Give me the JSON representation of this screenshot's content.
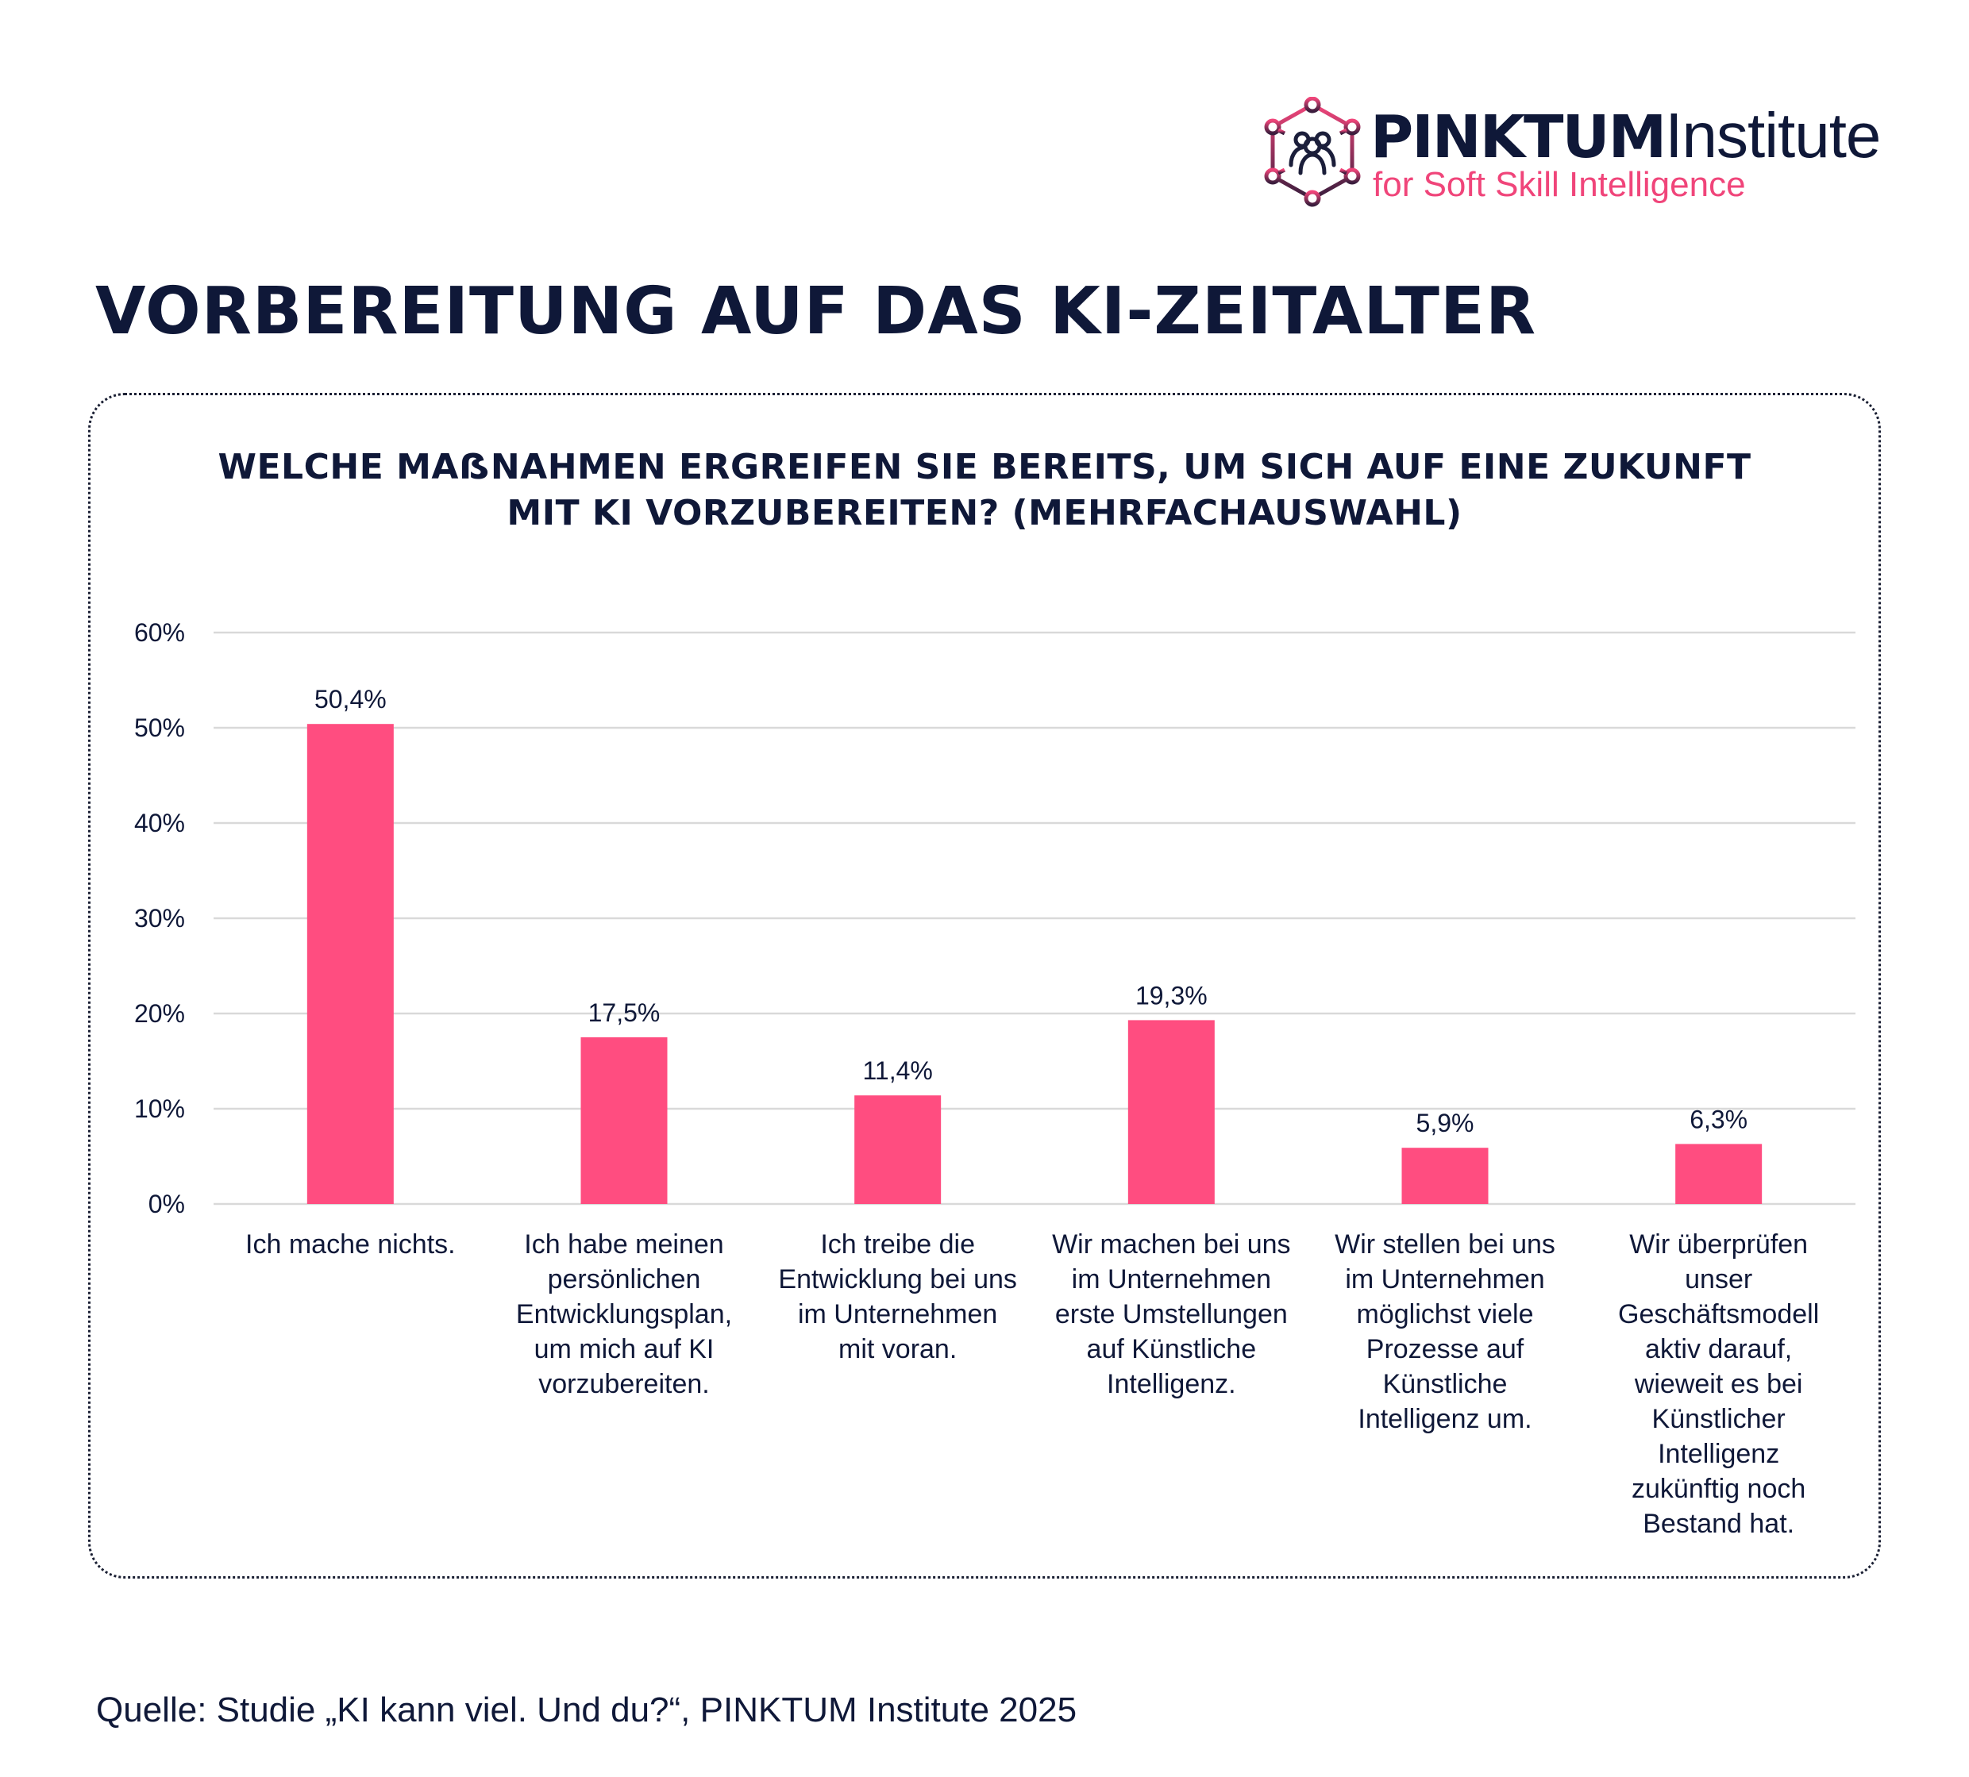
{
  "brand": {
    "name_bold": "PINKTUM",
    "name_light": "Institute",
    "tagline": "for Soft Skill Intelligence",
    "logo_icon": "network-people-hexagon-icon",
    "colors": {
      "dark": "#0f1838",
      "pink": "#f0457a",
      "plum": "#6b2a55"
    }
  },
  "page": {
    "title": "VORBEREITUNG AUF DAS KI-ZEITALTER",
    "source": "Quelle: Studie „KI kann viel. Und du?“, PINKTUM Institute 2025"
  },
  "card": {
    "question_line1": "WELCHE MAẞNAHMEN ERGREIFEN SIE BEREITS, UM SICH AUF EINE ZUKUNFT",
    "question_line2": "MIT KI VORZUBEREITEN? (MEHRFACHAUSWAHL)"
  },
  "chart_data": {
    "type": "bar",
    "title": "WELCHE MAẞNAHMEN ERGREIFEN SIE BEREITS, UM SICH AUF EINE ZUKUNFT MIT KI VORZUBEREITEN? (MEHRFACHAUSWAHL)",
    "xlabel": "",
    "ylabel": "",
    "ylim": [
      0,
      60
    ],
    "yticks": [
      0,
      10,
      20,
      30,
      40,
      50,
      60
    ],
    "ytick_labels": [
      "0%",
      "10%",
      "20%",
      "30%",
      "40%",
      "50%",
      "60%"
    ],
    "grid": true,
    "legend": "none",
    "bar_color": "#ff4d80",
    "categories": [
      "Ich mache nichts.",
      "Ich habe meinen persönlichen Entwicklungsplan, um mich auf KI vorzubereiten.",
      "Ich treibe die Entwicklung bei uns im Unternehmen mit voran.",
      "Wir machen bei uns im Unternehmen erste Umstellungen auf Künstliche Intelligenz.",
      "Wir stellen bei uns im Unternehmen möglichst viele Prozesse auf Künstliche Intelligenz um.",
      "Wir überprüfen unser Geschäftsmodell aktiv darauf, wieweit es bei Künstlicher Intelligenz zukünftig noch Bestand hat."
    ],
    "category_lines": [
      [
        "Ich mache nichts."
      ],
      [
        "Ich habe meinen",
        "persönlichen",
        "Entwicklungsplan,",
        "um mich auf KI",
        "vorzubereiten."
      ],
      [
        "Ich treibe die",
        "Entwicklung bei uns",
        "im Unternehmen",
        "mit voran."
      ],
      [
        "Wir machen bei uns",
        "im Unternehmen",
        "erste Umstellungen",
        "auf Künstliche",
        "Intelligenz."
      ],
      [
        "Wir stellen bei uns",
        "im Unternehmen",
        "möglichst viele",
        "Prozesse auf",
        "Künstliche",
        "Intelligenz um."
      ],
      [
        "Wir überprüfen",
        "unser",
        "Geschäftsmodell",
        "aktiv darauf,",
        "wieweit es bei",
        "Künstlicher",
        "Intelligenz",
        "zukünftig noch",
        "Bestand hat."
      ]
    ],
    "values": [
      50.4,
      17.5,
      11.4,
      19.3,
      5.9,
      6.3
    ],
    "value_labels": [
      "50,4%",
      "17,5%",
      "11,4%",
      "19,3%",
      "5,9%",
      "6,3%"
    ]
  }
}
